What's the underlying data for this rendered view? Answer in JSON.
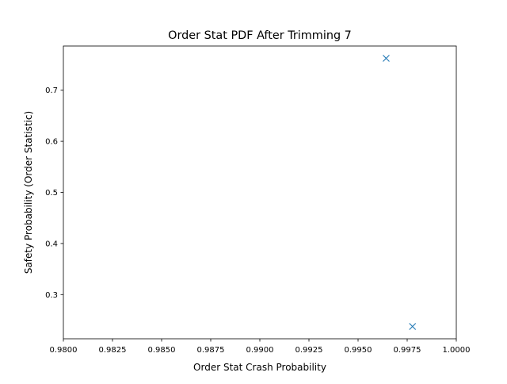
{
  "chart_data": {
    "type": "scatter",
    "title": "Order Stat PDF After Trimming 7",
    "xlabel": "Order Stat Crash Probability",
    "ylabel": "Safety Probability (Order Statistic)",
    "xlim": [
      0.98,
      1.0
    ],
    "ylim": [
      0.2135,
      0.7865
    ],
    "xticks": [
      0.98,
      0.9825,
      0.985,
      0.9875,
      0.99,
      0.9925,
      0.995,
      0.9975,
      1.0
    ],
    "xtick_labels": [
      "0.9800",
      "0.9825",
      "0.9850",
      "0.9875",
      "0.9900",
      "0.9925",
      "0.9950",
      "0.9975",
      "1.0000"
    ],
    "yticks": [
      0.3,
      0.4,
      0.5,
      0.6,
      0.7
    ],
    "ytick_labels": [
      "0.3",
      "0.4",
      "0.5",
      "0.6",
      "0.7"
    ],
    "grid": false,
    "marker": "x",
    "color": "#1f77b4",
    "series": [
      {
        "x": [
          0.99643,
          0.99777
        ],
        "y": [
          0.7625,
          0.2375
        ]
      }
    ]
  }
}
